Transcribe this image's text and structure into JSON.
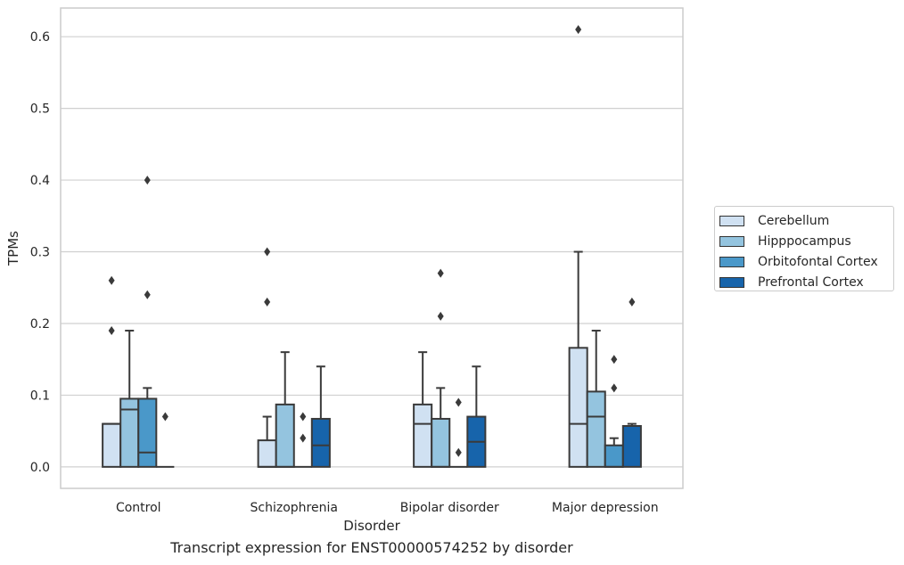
{
  "caption": "Transcript expression for ENST00000574252 by disorder",
  "chart_data": {
    "type": "box",
    "xlabel": "Disorder",
    "ylabel": "TPMs",
    "ylim": [
      -0.03,
      0.64
    ],
    "yticks": [
      0.0,
      0.1,
      0.2,
      0.3,
      0.4,
      0.5,
      0.6
    ],
    "ytick_labels": [
      "0.0",
      "0.1",
      "0.2",
      "0.3",
      "0.4",
      "0.5",
      "0.6"
    ],
    "grid": "horizontal",
    "legend_position": "right",
    "categories": [
      "Control",
      "Schizophrenia",
      "Bipolar disorder",
      "Major depression"
    ],
    "series": [
      {
        "name": "Cerebellum",
        "color": "#d0e1f2",
        "boxes": [
          {
            "q1": 0.0,
            "median": 0.06,
            "q3": 0.06,
            "whisker_low": 0.0,
            "whisker_high": 0.06,
            "outliers": [
              0.19,
              0.26
            ]
          },
          {
            "q1": 0.0,
            "median": 0.0,
            "q3": 0.037,
            "whisker_low": 0.0,
            "whisker_high": 0.07,
            "outliers": [
              0.23,
              0.3
            ]
          },
          {
            "q1": 0.0,
            "median": 0.06,
            "q3": 0.087,
            "whisker_low": 0.0,
            "whisker_high": 0.16,
            "outliers": []
          },
          {
            "q1": 0.0,
            "median": 0.06,
            "q3": 0.166,
            "whisker_low": 0.0,
            "whisker_high": 0.3,
            "outliers": [
              0.61
            ]
          }
        ]
      },
      {
        "name": "Hipppocampus",
        "color": "#94c4df",
        "boxes": [
          {
            "q1": 0.0,
            "median": 0.08,
            "q3": 0.095,
            "whisker_low": 0.0,
            "whisker_high": 0.19,
            "outliers": []
          },
          {
            "q1": 0.0,
            "median": 0.0,
            "q3": 0.087,
            "whisker_low": 0.0,
            "whisker_high": 0.16,
            "outliers": []
          },
          {
            "q1": 0.0,
            "median": 0.0,
            "q3": 0.067,
            "whisker_low": 0.0,
            "whisker_high": 0.11,
            "outliers": [
              0.21,
              0.27
            ]
          },
          {
            "q1": 0.0,
            "median": 0.07,
            "q3": 0.105,
            "whisker_low": 0.0,
            "whisker_high": 0.19,
            "outliers": []
          }
        ]
      },
      {
        "name": "Orbitofontal Cortex",
        "color": "#4a98c9",
        "boxes": [
          {
            "q1": 0.0,
            "median": 0.02,
            "q3": 0.095,
            "whisker_low": 0.0,
            "whisker_high": 0.11,
            "outliers": [
              0.24,
              0.4
            ]
          },
          {
            "q1": 0.0,
            "median": 0.0,
            "q3": 0.0,
            "whisker_low": 0.0,
            "whisker_high": 0.0,
            "outliers": [
              0.04,
              0.07
            ]
          },
          {
            "q1": 0.0,
            "median": 0.0,
            "q3": 0.0,
            "whisker_low": 0.0,
            "whisker_high": 0.0,
            "outliers": [
              0.02,
              0.09
            ]
          },
          {
            "q1": 0.0,
            "median": 0.0,
            "q3": 0.03,
            "whisker_low": 0.0,
            "whisker_high": 0.04,
            "outliers": [
              0.11,
              0.15
            ]
          }
        ]
      },
      {
        "name": "Prefrontal Cortex",
        "color": "#1764ab",
        "boxes": [
          {
            "q1": 0.0,
            "median": 0.0,
            "q3": 0.0,
            "whisker_low": 0.0,
            "whisker_high": 0.0,
            "outliers": [
              0.07
            ]
          },
          {
            "q1": 0.0,
            "median": 0.03,
            "q3": 0.067,
            "whisker_low": 0.0,
            "whisker_high": 0.14,
            "outliers": []
          },
          {
            "q1": 0.0,
            "median": 0.035,
            "q3": 0.07,
            "whisker_low": 0.0,
            "whisker_high": 0.14,
            "outliers": []
          },
          {
            "q1": 0.0,
            "median": 0.057,
            "q3": 0.057,
            "whisker_low": 0.0,
            "whisker_high": 0.06,
            "outliers": [
              0.23
            ]
          }
        ]
      }
    ]
  }
}
